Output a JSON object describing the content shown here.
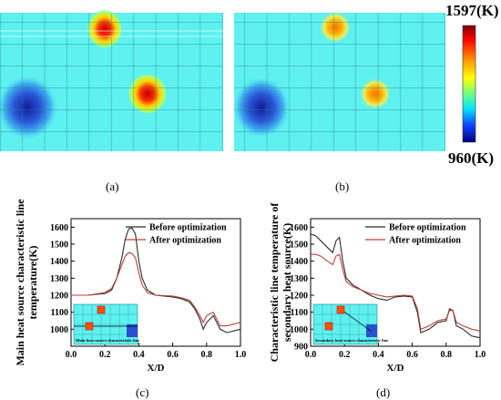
{
  "colorbar": {
    "max_label": "1597(K)",
    "min_label": "960(K)"
  },
  "panels": {
    "a": "(a)",
    "b": "(b)",
    "c": "(c)",
    "d": "(d)"
  },
  "chart_data": [
    {
      "type": "line",
      "panel": "(c)",
      "ylabel": "Main heat source characteristic line temperature(K)",
      "xlabel": "X/D",
      "xlim": [
        0.0,
        1.0
      ],
      "ylim": [
        900,
        1650
      ],
      "x_ticks": [
        "0.0",
        "0.2",
        "0.4",
        "0.6",
        "0.8",
        "1.0"
      ],
      "y_ticks": [
        "1000",
        "1100",
        "1200",
        "1300",
        "1400",
        "1500",
        "1600"
      ],
      "legend_position": "top-right",
      "inset_caption": "Main heat source characteristic line",
      "series": [
        {
          "name": "Before optimization",
          "color": "#2a2a2a",
          "x": [
            0.0,
            0.1,
            0.2,
            0.24,
            0.27,
            0.3,
            0.32,
            0.34,
            0.36,
            0.38,
            0.4,
            0.42,
            0.45,
            0.5,
            0.6,
            0.65,
            0.7,
            0.73,
            0.76,
            0.78,
            0.8,
            0.84,
            0.88,
            0.92,
            0.96,
            1.0
          ],
          "y": [
            1200,
            1200,
            1210,
            1230,
            1300,
            1420,
            1530,
            1590,
            1595,
            1560,
            1400,
            1300,
            1230,
            1200,
            1190,
            1180,
            1160,
            1120,
            1060,
            1000,
            1040,
            1080,
            1000,
            980,
            990,
            1000
          ]
        },
        {
          "name": "After optimization",
          "color": "#b8403a",
          "x": [
            0.0,
            0.1,
            0.2,
            0.24,
            0.27,
            0.3,
            0.32,
            0.34,
            0.36,
            0.38,
            0.4,
            0.42,
            0.45,
            0.5,
            0.6,
            0.65,
            0.7,
            0.73,
            0.76,
            0.78,
            0.8,
            0.84,
            0.88,
            0.92,
            0.96,
            1.0
          ],
          "y": [
            1200,
            1200,
            1215,
            1240,
            1300,
            1380,
            1430,
            1450,
            1445,
            1420,
            1330,
            1260,
            1215,
            1200,
            1195,
            1185,
            1170,
            1130,
            1080,
            1040,
            1080,
            1100,
            1020,
            1020,
            1030,
            1040
          ]
        }
      ]
    },
    {
      "type": "line",
      "panel": "(d)",
      "ylabel": "Characteristic line temperature of secondary heat source(K)",
      "xlabel": "X/D",
      "xlim": [
        0.0,
        1.0
      ],
      "ylim": [
        900,
        1650
      ],
      "x_ticks": [
        "0.0",
        "0.2",
        "0.4",
        "0.6",
        "0.8",
        "1.0"
      ],
      "y_ticks": [
        "900",
        "1000",
        "1100",
        "1200",
        "1300",
        "1400",
        "1500",
        "1600"
      ],
      "legend_position": "top-right",
      "inset_caption": "Secondary heat source characteristic line",
      "series": [
        {
          "name": "Before optimization",
          "color": "#2a2a2a",
          "x": [
            0.0,
            0.03,
            0.06,
            0.1,
            0.13,
            0.15,
            0.17,
            0.19,
            0.21,
            0.25,
            0.3,
            0.35,
            0.4,
            0.45,
            0.5,
            0.55,
            0.6,
            0.63,
            0.65,
            0.7,
            0.75,
            0.8,
            0.82,
            0.84,
            0.86,
            0.9,
            0.95,
            1.0
          ],
          "y": [
            1560,
            1550,
            1520,
            1480,
            1450,
            1520,
            1540,
            1400,
            1300,
            1260,
            1230,
            1200,
            1180,
            1170,
            1190,
            1195,
            1190,
            1100,
            980,
            1000,
            1040,
            1050,
            1120,
            1110,
            1020,
            1000,
            960,
            950
          ]
        },
        {
          "name": "After optimization",
          "color": "#b8403a",
          "x": [
            0.0,
            0.03,
            0.06,
            0.1,
            0.13,
            0.15,
            0.17,
            0.19,
            0.21,
            0.25,
            0.3,
            0.35,
            0.4,
            0.45,
            0.5,
            0.55,
            0.6,
            0.63,
            0.65,
            0.7,
            0.75,
            0.8,
            0.82,
            0.84,
            0.86,
            0.9,
            0.95,
            1.0
          ],
          "y": [
            1440,
            1440,
            1430,
            1400,
            1380,
            1430,
            1440,
            1350,
            1280,
            1250,
            1230,
            1210,
            1200,
            1190,
            1195,
            1200,
            1195,
            1120,
            1000,
            1020,
            1050,
            1060,
            1110,
            1110,
            1040,
            1020,
            1000,
            990
          ]
        }
      ]
    }
  ]
}
